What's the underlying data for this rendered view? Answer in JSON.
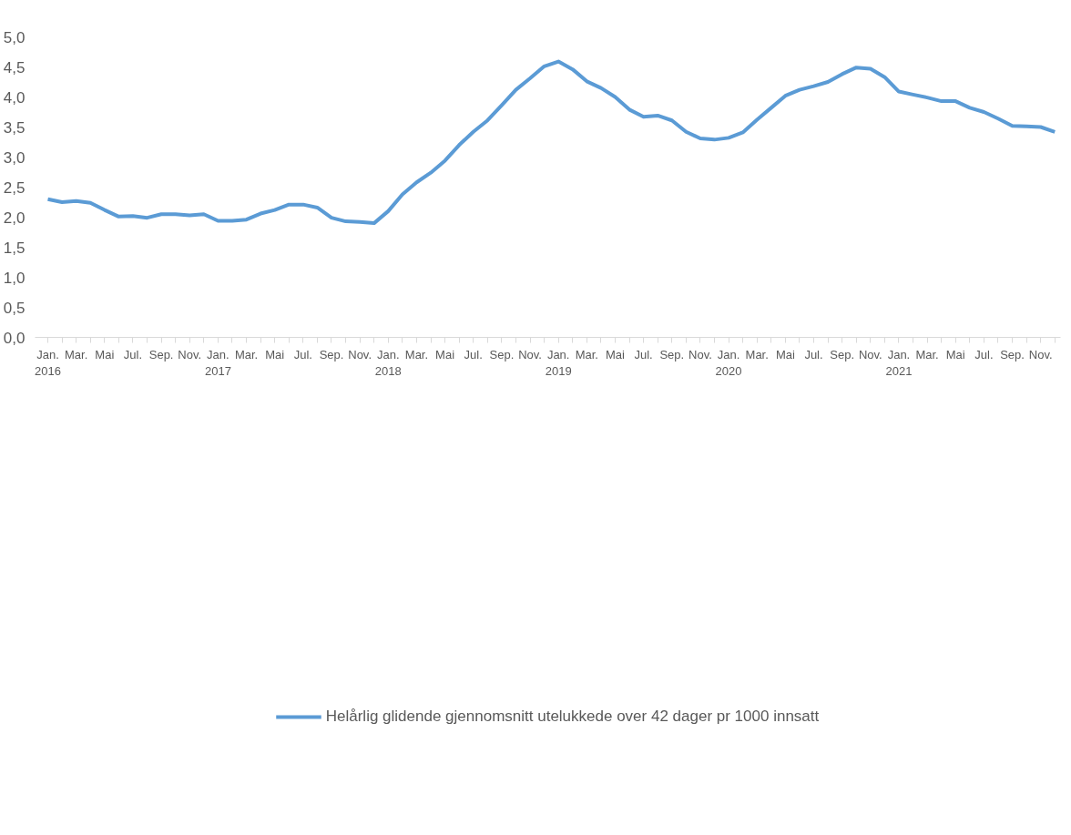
{
  "chart_data": {
    "type": "line",
    "categories": [
      "Jan. 2016",
      null,
      "Mar.",
      null,
      "Mai",
      null,
      "Jul.",
      null,
      "Sep.",
      null,
      "Nov.",
      null,
      "Jan. 2017",
      null,
      "Mar.",
      null,
      "Mai",
      null,
      "Jul.",
      null,
      "Sep.",
      null,
      "Nov.",
      null,
      "Jan. 2018",
      null,
      "Mar.",
      null,
      "Mai",
      null,
      "Jul.",
      null,
      "Sep.",
      null,
      "Nov.",
      null,
      "Jan. 2019",
      null,
      "Mar.",
      null,
      "Mai",
      null,
      "Jul.",
      null,
      "Sep.",
      null,
      "Nov.",
      null,
      "Jan. 2020",
      null,
      "Mar.",
      null,
      "Mai",
      null,
      "Jul.",
      null,
      "Sep.",
      null,
      "Nov.",
      null,
      "Jan. 2021",
      null,
      "Mar.",
      null,
      "Mai",
      null,
      "Jul.",
      null,
      "Sep.",
      null,
      "Nov.",
      null
    ],
    "series": [
      {
        "name": "Helårlig glidende gjennomsnitt utelukkede over 42 dager pr 1000 innsatt",
        "color": "#5b9bd5",
        "values": [
          2.3,
          2.25,
          2.27,
          2.24,
          2.12,
          2.01,
          2.02,
          1.99,
          2.05,
          2.05,
          2.03,
          2.05,
          1.94,
          1.94,
          1.96,
          2.06,
          2.12,
          2.21,
          2.21,
          2.16,
          1.99,
          1.93,
          1.92,
          1.9,
          2.1,
          2.38,
          2.58,
          2.74,
          2.94,
          3.2,
          3.42,
          3.61,
          3.86,
          4.12,
          4.31,
          4.51,
          4.59,
          4.46,
          4.26,
          4.15,
          4.0,
          3.79,
          3.67,
          3.69,
          3.61,
          3.42,
          3.31,
          3.29,
          3.32,
          3.41,
          3.62,
          3.82,
          4.02,
          4.12,
          4.18,
          4.25,
          4.38,
          4.49,
          4.47,
          4.33,
          4.09,
          4.04,
          3.99,
          3.93,
          3.93,
          3.82,
          3.75,
          3.64,
          3.52,
          3.51,
          3.5,
          3.42
        ]
      }
    ],
    "ylim": [
      0,
      5
    ],
    "yticks": [
      {
        "value": 0,
        "label": "0,0"
      },
      {
        "value": 0.5,
        "label": "0,5"
      },
      {
        "value": 1,
        "label": "1,0"
      },
      {
        "value": 1.5,
        "label": "1,5"
      },
      {
        "value": 2,
        "label": "2,0"
      },
      {
        "value": 2.5,
        "label": "2,5"
      },
      {
        "value": 3,
        "label": "3,0"
      },
      {
        "value": 3.5,
        "label": "3,5"
      },
      {
        "value": 4,
        "label": "4,0"
      },
      {
        "value": 4.5,
        "label": "4,5"
      },
      {
        "value": 5,
        "label": "5,0"
      }
    ],
    "grid": false,
    "legend": "bottom",
    "marker": "none",
    "line_style": "solid"
  }
}
